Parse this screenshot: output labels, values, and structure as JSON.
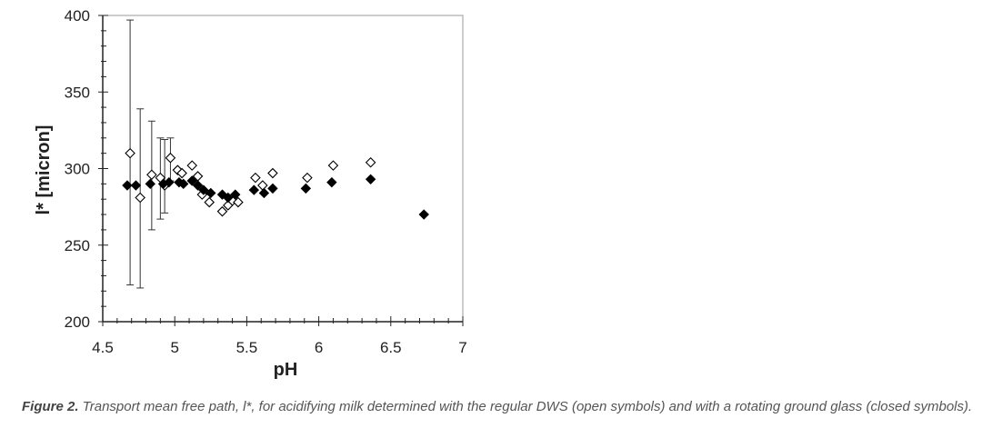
{
  "chart_data": {
    "type": "scatter",
    "title": "",
    "xlabel": "pH",
    "ylabel": "l* [micron]",
    "xlim": [
      4.5,
      7
    ],
    "ylim": [
      200,
      400
    ],
    "x_ticks": [
      "4.5",
      "5",
      "5.5",
      "6",
      "6.5",
      "7"
    ],
    "y_ticks": [
      "200",
      "250",
      "300",
      "350",
      "400"
    ],
    "grid": false,
    "legend": "none",
    "series": [
      {
        "marker": "open-diamond",
        "points": [
          {
            "x": 4.69,
            "y": 310,
            "err_low": 224,
            "err_high": 397
          },
          {
            "x": 4.76,
            "y": 281,
            "err_low": 222,
            "err_high": 339
          },
          {
            "x": 4.84,
            "y": 296,
            "err_low": 260,
            "err_high": 331
          },
          {
            "x": 4.9,
            "y": 294,
            "err_low": 267,
            "err_high": 320
          },
          {
            "x": 4.93,
            "y": 289,
            "err_low": 271,
            "err_high": 319
          },
          {
            "x": 4.97,
            "y": 307,
            "err_low": 292,
            "err_high": 320
          },
          {
            "x": 5.02,
            "y": 299
          },
          {
            "x": 5.05,
            "y": 297
          },
          {
            "x": 5.12,
            "y": 302
          },
          {
            "x": 5.16,
            "y": 295
          },
          {
            "x": 5.19,
            "y": 283
          },
          {
            "x": 5.24,
            "y": 278
          },
          {
            "x": 5.33,
            "y": 272
          },
          {
            "x": 5.37,
            "y": 276
          },
          {
            "x": 5.4,
            "y": 279
          },
          {
            "x": 5.44,
            "y": 278
          },
          {
            "x": 5.56,
            "y": 294
          },
          {
            "x": 5.61,
            "y": 289
          },
          {
            "x": 5.68,
            "y": 297
          },
          {
            "x": 5.92,
            "y": 294
          },
          {
            "x": 6.1,
            "y": 302
          },
          {
            "x": 6.36,
            "y": 304
          }
        ]
      },
      {
        "marker": "filled-diamond",
        "points": [
          {
            "x": 4.67,
            "y": 289
          },
          {
            "x": 4.73,
            "y": 289
          },
          {
            "x": 4.83,
            "y": 290
          },
          {
            "x": 4.92,
            "y": 290
          },
          {
            "x": 4.96,
            "y": 291
          },
          {
            "x": 5.03,
            "y": 291
          },
          {
            "x": 5.06,
            "y": 290
          },
          {
            "x": 5.12,
            "y": 292
          },
          {
            "x": 5.16,
            "y": 289
          },
          {
            "x": 5.2,
            "y": 286
          },
          {
            "x": 5.25,
            "y": 284
          },
          {
            "x": 5.33,
            "y": 283
          },
          {
            "x": 5.37,
            "y": 281
          },
          {
            "x": 5.42,
            "y": 283
          },
          {
            "x": 5.55,
            "y": 286
          },
          {
            "x": 5.62,
            "y": 284
          },
          {
            "x": 5.68,
            "y": 287
          },
          {
            "x": 5.91,
            "y": 287
          },
          {
            "x": 6.09,
            "y": 291
          },
          {
            "x": 6.36,
            "y": 293
          },
          {
            "x": 6.73,
            "y": 270
          }
        ]
      }
    ]
  },
  "caption": {
    "label": "Figure 2.",
    "text": " Transport mean free path, l*, for acidifying milk determined with the regular DWS (open symbols) and with a rotating ground glass (closed symbols)."
  }
}
